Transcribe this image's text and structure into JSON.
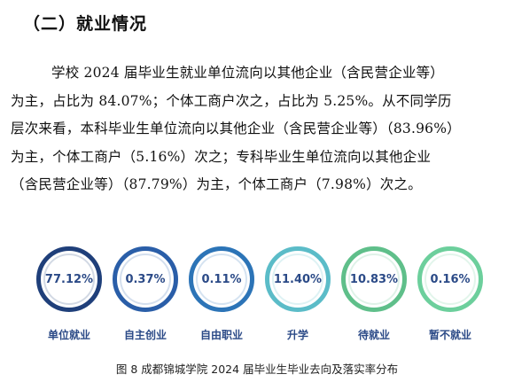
{
  "heading": "（二）就业情况",
  "paragraph": [
    "学校 2024 届毕业生就业单位流向以其他企业（含民营企业等）",
    "为主，占比为 84.07%；个体工商户次之，占比为 5.25%。从不同学历",
    "层次来看，本科毕业生单位流向以其他企业（含民营企业等）（83.96%）",
    "为主，个体工商户（5.16%）次之；专科毕业生单位流向以其他企业",
    "（含民营企业等）（87.79%）为主，个体工商户（7.98%）次之。"
  ],
  "circles": [
    {
      "value": "77.12%",
      "label": "单位就业",
      "color": "#1f3f7a"
    },
    {
      "value": "0.37%",
      "label": "自主创业",
      "color": "#2a5ea8"
    },
    {
      "value": "0.11%",
      "label": "自由职业",
      "color": "#2c74b7"
    },
    {
      "value": "11.40%",
      "label": "升学",
      "color": "#5bbcc8"
    },
    {
      "value": "10.83%",
      "label": "待就业",
      "color": "#5fbf8a"
    },
    {
      "value": "0.16%",
      "label": "暂不就业",
      "color": "#6ccf9c"
    }
  ],
  "caption": "图 8 成都锦城学院 2024 届毕业生毕业去向及落实率分布"
}
